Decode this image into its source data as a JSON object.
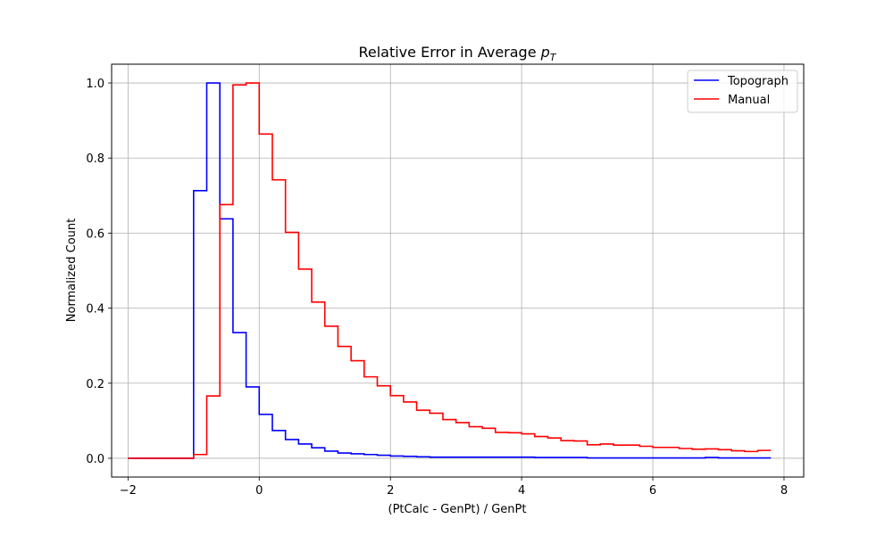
{
  "chart_data": {
    "type": "histogram-step",
    "title": "Relative Error in Average ",
    "title_math": "p",
    "title_math_sub": "T",
    "xlabel": "(PtCalc - GenPt) / GenPt",
    "ylabel": "Normalized Count",
    "xlim": [
      -2.25,
      8.3
    ],
    "ylim": [
      -0.05,
      1.05
    ],
    "xticks": [
      -2,
      0,
      2,
      4,
      6,
      8
    ],
    "yticks": [
      0.0,
      0.2,
      0.4,
      0.6,
      0.8,
      1.0
    ],
    "xtick_labels": [
      "−2",
      "0",
      "2",
      "4",
      "6",
      "8"
    ],
    "ytick_labels": [
      "0.0",
      "0.2",
      "0.4",
      "0.6",
      "0.8",
      "1.0"
    ],
    "grid": true,
    "legend_position": "top-right",
    "bin_edges": [
      -2.0,
      -1.8,
      -1.6,
      -1.4,
      -1.2,
      -1.0,
      -0.8,
      -0.6,
      -0.4,
      -0.2,
      0.0,
      0.2,
      0.4,
      0.6,
      0.8,
      1.0,
      1.2,
      1.4,
      1.6,
      1.8,
      2.0,
      2.2,
      2.4,
      2.6,
      2.8,
      3.0,
      3.2,
      3.4,
      3.6,
      3.8,
      4.0,
      4.2,
      4.4,
      4.6,
      4.8,
      5.0,
      5.2,
      5.4,
      5.6,
      5.8,
      6.0,
      6.2,
      6.4,
      6.6,
      6.8,
      7.0,
      7.2,
      7.4,
      7.6,
      7.8
    ],
    "series": [
      {
        "name": "Topograph",
        "color": "#0000ff",
        "values": [
          0,
          0,
          0,
          0,
          0,
          0.713,
          1.0,
          0.638,
          0.335,
          0.19,
          0.117,
          0.074,
          0.05,
          0.038,
          0.028,
          0.019,
          0.014,
          0.012,
          0.01,
          0.008,
          0.006,
          0.005,
          0.004,
          0.003,
          0.003,
          0.003,
          0.003,
          0.003,
          0.003,
          0.003,
          0.003,
          0.002,
          0.002,
          0.002,
          0.002,
          0.001,
          0.001,
          0.001,
          0.001,
          0.001,
          0.001,
          0.001,
          0.001,
          0.001,
          0.002,
          0.001,
          0.001,
          0.001,
          0.001
        ]
      },
      {
        "name": "Manual",
        "color": "#ff0000",
        "values": [
          0,
          0,
          0,
          0,
          0,
          0.01,
          0.166,
          0.676,
          0.995,
          1.0,
          0.864,
          0.742,
          0.602,
          0.504,
          0.416,
          0.352,
          0.298,
          0.26,
          0.217,
          0.193,
          0.167,
          0.15,
          0.128,
          0.12,
          0.103,
          0.095,
          0.084,
          0.08,
          0.069,
          0.068,
          0.065,
          0.058,
          0.054,
          0.047,
          0.046,
          0.036,
          0.038,
          0.035,
          0.035,
          0.032,
          0.029,
          0.029,
          0.026,
          0.024,
          0.025,
          0.023,
          0.02,
          0.018,
          0.021
        ]
      }
    ]
  }
}
